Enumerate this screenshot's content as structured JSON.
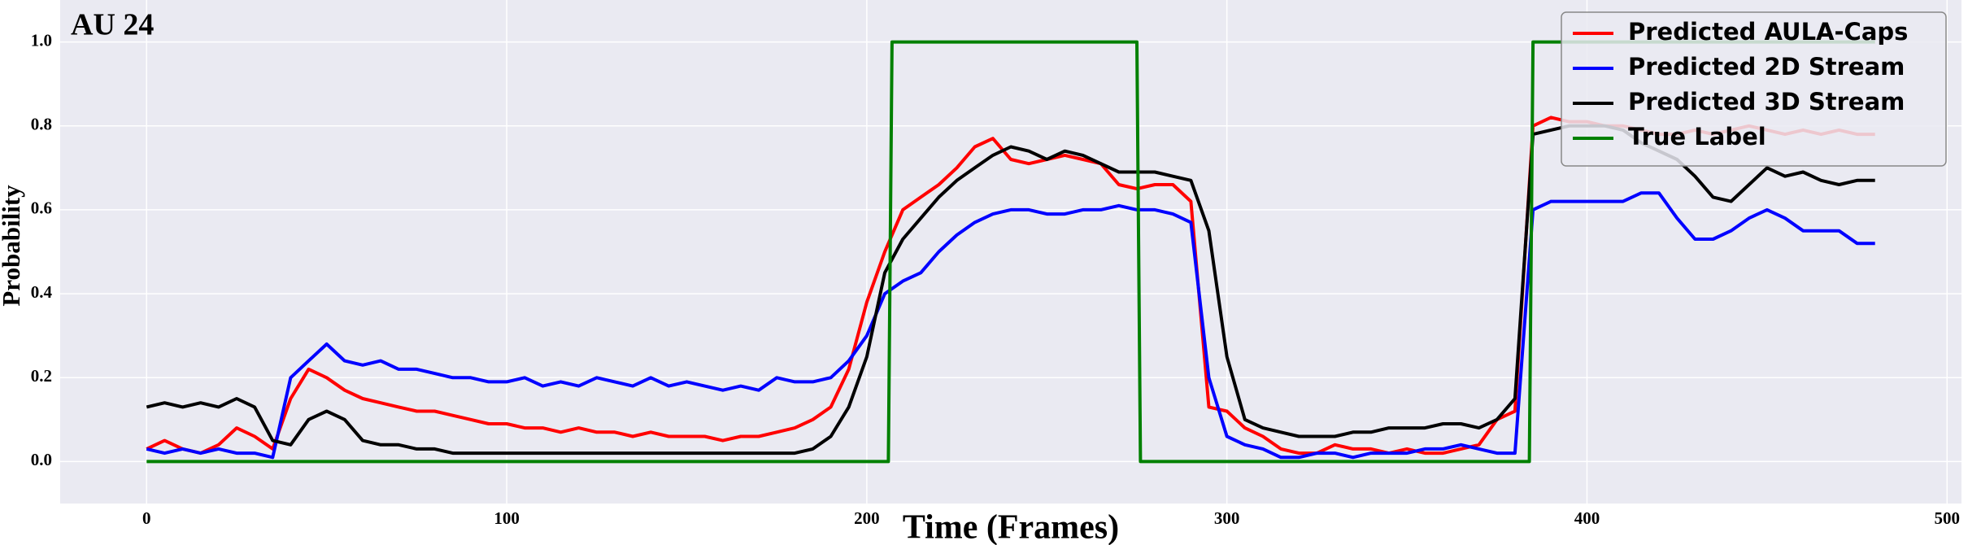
{
  "chart_data": {
    "type": "line",
    "title": "AU 24",
    "x_label": "Time (Frames)",
    "y_label": "Probability",
    "x": [
      0,
      5,
      10,
      15,
      20,
      25,
      30,
      35,
      40,
      45,
      50,
      55,
      60,
      65,
      70,
      75,
      80,
      85,
      90,
      95,
      100,
      105,
      110,
      115,
      120,
      125,
      130,
      135,
      140,
      145,
      150,
      155,
      160,
      165,
      170,
      175,
      180,
      185,
      190,
      195,
      200,
      205,
      210,
      215,
      220,
      225,
      230,
      235,
      240,
      245,
      250,
      255,
      260,
      265,
      270,
      275,
      280,
      285,
      290,
      295,
      300,
      305,
      310,
      315,
      320,
      325,
      330,
      335,
      340,
      345,
      350,
      355,
      360,
      365,
      370,
      375,
      380,
      385,
      390,
      395,
      400,
      405,
      410,
      415,
      420,
      425,
      430,
      435,
      440,
      445,
      450,
      455,
      460,
      465,
      470,
      475,
      480
    ],
    "series": [
      {
        "name": "Predicted AULA-Caps",
        "color": "#ff0000",
        "values": [
          0.03,
          0.05,
          0.03,
          0.02,
          0.04,
          0.08,
          0.06,
          0.03,
          0.15,
          0.22,
          0.2,
          0.17,
          0.15,
          0.14,
          0.13,
          0.12,
          0.12,
          0.11,
          0.1,
          0.09,
          0.09,
          0.08,
          0.08,
          0.07,
          0.08,
          0.07,
          0.07,
          0.06,
          0.07,
          0.06,
          0.06,
          0.06,
          0.05,
          0.06,
          0.06,
          0.07,
          0.08,
          0.1,
          0.13,
          0.22,
          0.38,
          0.5,
          0.6,
          0.63,
          0.66,
          0.7,
          0.75,
          0.77,
          0.72,
          0.71,
          0.72,
          0.73,
          0.72,
          0.71,
          0.66,
          0.65,
          0.66,
          0.66,
          0.62,
          0.13,
          0.12,
          0.08,
          0.06,
          0.03,
          0.02,
          0.02,
          0.04,
          0.03,
          0.03,
          0.02,
          0.03,
          0.02,
          0.02,
          0.03,
          0.04,
          0.1,
          0.12,
          0.8,
          0.82,
          0.81,
          0.81,
          0.8,
          0.8,
          0.79,
          0.78,
          0.78,
          0.79,
          0.78,
          0.79,
          0.8,
          0.79,
          0.78,
          0.79,
          0.78,
          0.79,
          0.78,
          0.78
        ]
      },
      {
        "name": "Predicted 2D Stream",
        "color": "#0000ff",
        "values": [
          0.03,
          0.02,
          0.03,
          0.02,
          0.03,
          0.02,
          0.02,
          0.01,
          0.2,
          0.24,
          0.28,
          0.24,
          0.23,
          0.24,
          0.22,
          0.22,
          0.21,
          0.2,
          0.2,
          0.19,
          0.19,
          0.2,
          0.18,
          0.19,
          0.18,
          0.2,
          0.19,
          0.18,
          0.2,
          0.18,
          0.19,
          0.18,
          0.17,
          0.18,
          0.17,
          0.2,
          0.19,
          0.19,
          0.2,
          0.24,
          0.3,
          0.4,
          0.43,
          0.45,
          0.5,
          0.54,
          0.57,
          0.59,
          0.6,
          0.6,
          0.59,
          0.59,
          0.6,
          0.6,
          0.61,
          0.6,
          0.6,
          0.59,
          0.57,
          0.2,
          0.06,
          0.04,
          0.03,
          0.01,
          0.01,
          0.02,
          0.02,
          0.01,
          0.02,
          0.02,
          0.02,
          0.03,
          0.03,
          0.04,
          0.03,
          0.02,
          0.02,
          0.6,
          0.62,
          0.62,
          0.62,
          0.62,
          0.62,
          0.64,
          0.64,
          0.58,
          0.53,
          0.53,
          0.55,
          0.58,
          0.6,
          0.58,
          0.55,
          0.55,
          0.55,
          0.52,
          0.52
        ]
      },
      {
        "name": "Predicted 3D Stream",
        "color": "#000000",
        "values": [
          0.13,
          0.14,
          0.13,
          0.14,
          0.13,
          0.15,
          0.13,
          0.05,
          0.04,
          0.1,
          0.12,
          0.1,
          0.05,
          0.04,
          0.04,
          0.03,
          0.03,
          0.02,
          0.02,
          0.02,
          0.02,
          0.02,
          0.02,
          0.02,
          0.02,
          0.02,
          0.02,
          0.02,
          0.02,
          0.02,
          0.02,
          0.02,
          0.02,
          0.02,
          0.02,
          0.02,
          0.02,
          0.03,
          0.06,
          0.13,
          0.25,
          0.45,
          0.53,
          0.58,
          0.63,
          0.67,
          0.7,
          0.73,
          0.75,
          0.74,
          0.72,
          0.74,
          0.73,
          0.71,
          0.69,
          0.69,
          0.69,
          0.68,
          0.67,
          0.55,
          0.25,
          0.1,
          0.08,
          0.07,
          0.06,
          0.06,
          0.06,
          0.07,
          0.07,
          0.08,
          0.08,
          0.08,
          0.09,
          0.09,
          0.08,
          0.1,
          0.15,
          0.78,
          0.79,
          0.8,
          0.8,
          0.8,
          0.79,
          0.76,
          0.74,
          0.72,
          0.68,
          0.63,
          0.62,
          0.66,
          0.7,
          0.68,
          0.69,
          0.67,
          0.66,
          0.67,
          0.67
        ]
      },
      {
        "name": "True Label",
        "color": "#008000",
        "x": [
          0,
          206,
          207,
          275,
          276,
          384,
          385,
          480
        ],
        "values": [
          0,
          0,
          1,
          1,
          0,
          0,
          1,
          1
        ]
      }
    ],
    "xlim": [
      -24,
      504
    ],
    "ylim": [
      -0.1,
      1.1
    ],
    "xticks": [
      0,
      100,
      200,
      300,
      400,
      500
    ],
    "yticks": [
      {
        "value": 0,
        "label": "0.0"
      },
      {
        "value": 0.2,
        "label": "0.2"
      },
      {
        "value": 0.4,
        "label": "0.4"
      },
      {
        "value": 0.6,
        "label": "0.6"
      },
      {
        "value": 0.8,
        "label": "0.8"
      },
      {
        "value": 1,
        "label": "1.0"
      }
    ],
    "grid": true,
    "legend": "upper right"
  }
}
